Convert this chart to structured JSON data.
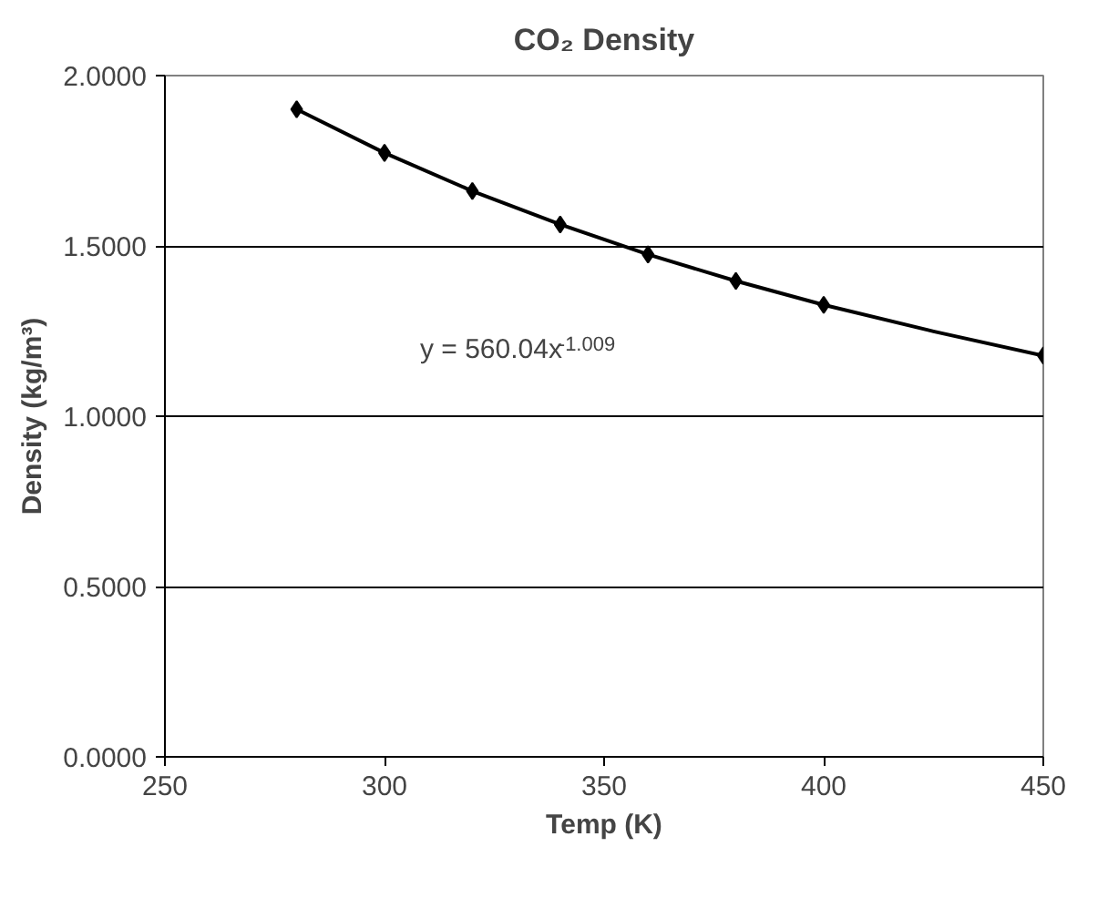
{
  "chart_data": {
    "type": "scatter",
    "title": "CO₂ Density",
    "xlabel": "Temp (K)",
    "ylabel": "Density (kg/m³)",
    "x": [
      280,
      300,
      320,
      340,
      360,
      380,
      400,
      450
    ],
    "series": [
      {
        "color": "#000000",
        "marker": "diamond",
        "values": [
          1.901,
          1.773,
          1.661,
          1.563,
          1.475,
          1.397,
          1.327,
          1.178
        ]
      },
      {
        "type": "line",
        "color": "#000000",
        "x": [
          280,
          300,
          320,
          340,
          360,
          380,
          400,
          425,
          450
        ],
        "values": [
          1.901,
          1.773,
          1.661,
          1.563,
          1.475,
          1.397,
          1.327,
          1.249,
          1.178
        ]
      }
    ],
    "xlim": [
      250,
      450
    ],
    "xticks": [
      250,
      300,
      350,
      400,
      450
    ],
    "ylim": [
      0,
      2
    ],
    "yticks": [
      {
        "value": 0,
        "label": "0.0000"
      },
      {
        "value": 0.5,
        "label": "0.5000"
      },
      {
        "value": 1,
        "label": "1.0000"
      },
      {
        "value": 1.5,
        "label": "1.5000"
      },
      {
        "value": 2,
        "label": "2.0000"
      }
    ],
    "grid": "y",
    "annotations": [
      "y = 560.04x$^{-1.009}$"
    ]
  }
}
